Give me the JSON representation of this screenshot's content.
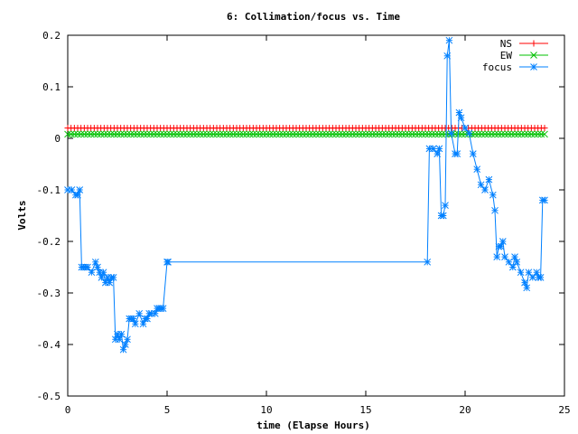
{
  "chart_data": {
    "type": "line",
    "title": "6: Collimation/focus vs. Time",
    "xlabel": "time (Elapse Hours)",
    "ylabel": "Volts",
    "xlim": [
      0,
      25
    ],
    "ylim": [
      -0.5,
      0.2
    ],
    "xticks": [
      0,
      5,
      10,
      15,
      20,
      25
    ],
    "xtick_labels": [
      "0",
      "5",
      "10",
      "15",
      "20",
      "25"
    ],
    "yticks": [
      -0.5,
      -0.4,
      -0.3,
      -0.2,
      -0.1,
      0,
      0.1,
      0.2
    ],
    "ytick_labels": [
      "-0.5",
      "-0.4",
      "-0.3",
      "-0.2",
      "-0.1",
      "0",
      "0.1",
      "0.2"
    ],
    "grid": false,
    "legend_position": "top-right",
    "series": [
      {
        "name": "NS",
        "color": "#ff0000",
        "marker": "plus",
        "x_range": [
          0,
          24
        ],
        "constant_value": 0.02
      },
      {
        "name": "EW",
        "color": "#00c000",
        "marker": "cross",
        "x_range": [
          0,
          24
        ],
        "constant_value": 0.008
      },
      {
        "name": "focus",
        "color": "#0080ff",
        "marker": "star",
        "x": [
          0,
          0.2,
          0.4,
          0.5,
          0.6,
          0.7,
          0.8,
          0.9,
          1.0,
          1.2,
          1.4,
          1.5,
          1.6,
          1.7,
          1.8,
          1.9,
          2.0,
          2.1,
          2.2,
          2.3,
          2.4,
          2.5,
          2.6,
          2.7,
          2.8,
          2.9,
          3.0,
          3.1,
          3.2,
          3.3,
          3.4,
          3.6,
          3.8,
          3.9,
          4.0,
          4.1,
          4.2,
          4.4,
          4.5,
          4.6,
          4.7,
          4.8,
          5.0,
          5.05,
          18.1,
          18.2,
          18.4,
          18.6,
          18.7,
          18.8,
          18.9,
          19.0,
          19.1,
          19.2,
          19.3,
          19.5,
          19.6,
          19.7,
          19.8,
          20.0,
          20.2,
          20.4,
          20.6,
          20.8,
          21.0,
          21.2,
          21.4,
          21.5,
          21.6,
          21.7,
          21.8,
          21.9,
          22.0,
          22.2,
          22.4,
          22.5,
          22.6,
          22.8,
          23.0,
          23.1,
          23.2,
          23.4,
          23.6,
          23.7,
          23.8,
          23.9,
          24.0
        ],
        "y": [
          -0.1,
          -0.1,
          -0.11,
          -0.11,
          -0.1,
          -0.25,
          -0.25,
          -0.25,
          -0.25,
          -0.26,
          -0.24,
          -0.25,
          -0.26,
          -0.27,
          -0.26,
          -0.28,
          -0.27,
          -0.28,
          -0.27,
          -0.27,
          -0.39,
          -0.38,
          -0.39,
          -0.38,
          -0.41,
          -0.4,
          -0.39,
          -0.35,
          -0.35,
          -0.35,
          -0.36,
          -0.34,
          -0.36,
          -0.35,
          -0.35,
          -0.34,
          -0.34,
          -0.34,
          -0.33,
          -0.33,
          -0.33,
          -0.33,
          -0.24,
          -0.24,
          -0.24,
          -0.02,
          -0.02,
          -0.03,
          -0.02,
          -0.15,
          -0.15,
          -0.13,
          0.16,
          0.19,
          0.01,
          -0.03,
          -0.03,
          0.05,
          0.04,
          0.02,
          0.01,
          -0.03,
          -0.06,
          -0.09,
          -0.1,
          -0.08,
          -0.11,
          -0.14,
          -0.23,
          -0.21,
          -0.21,
          -0.2,
          -0.23,
          -0.24,
          -0.25,
          -0.23,
          -0.24,
          -0.26,
          -0.28,
          -0.29,
          -0.26,
          -0.27,
          -0.26,
          -0.27,
          -0.27,
          -0.12,
          -0.12
        ]
      }
    ]
  }
}
